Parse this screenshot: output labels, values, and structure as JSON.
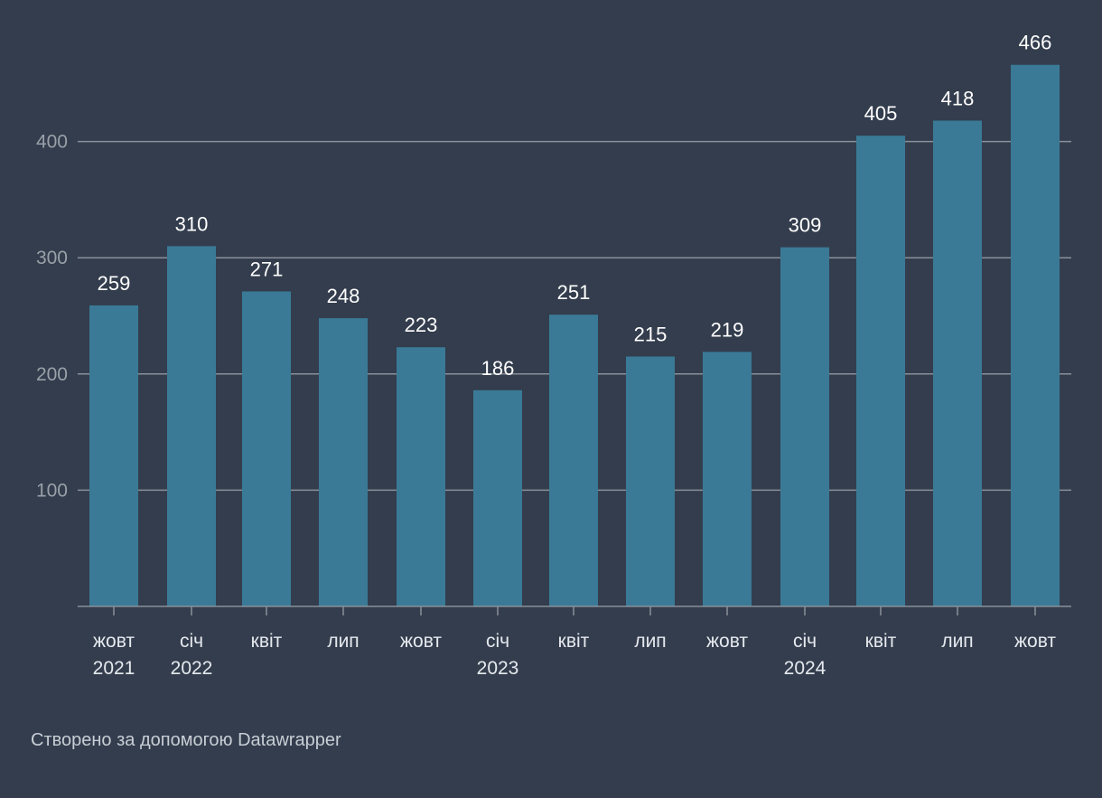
{
  "colors": {
    "background": "#333d4d",
    "bar": "#3a7a96",
    "gridline": "#8a9099",
    "axis_text": "#9aa0a8",
    "value_label": "#ffffff",
    "category_text": "#e6e9ee",
    "footer_text": "#c9ced6"
  },
  "chart_data": {
    "type": "bar",
    "title": "",
    "xlabel": "",
    "ylabel": "",
    "categories": [
      [
        "жовт",
        "2021"
      ],
      [
        "січ",
        "2022"
      ],
      [
        "квіт"
      ],
      [
        "лип"
      ],
      [
        "жовт"
      ],
      [
        "січ",
        "2023"
      ],
      [
        "квіт"
      ],
      [
        "лип"
      ],
      [
        "жовт"
      ],
      [
        "січ",
        "2024"
      ],
      [
        "квіт"
      ],
      [
        "лип"
      ],
      [
        "жовт"
      ]
    ],
    "values": [
      259,
      310,
      271,
      248,
      223,
      186,
      251,
      215,
      219,
      309,
      405,
      418,
      466
    ],
    "ylim": [
      0,
      466
    ],
    "yticks": [
      100,
      200,
      300,
      400
    ],
    "grid": true,
    "legend": "none"
  },
  "footer": {
    "credit": "Створено за допомогою Datawrapper"
  }
}
